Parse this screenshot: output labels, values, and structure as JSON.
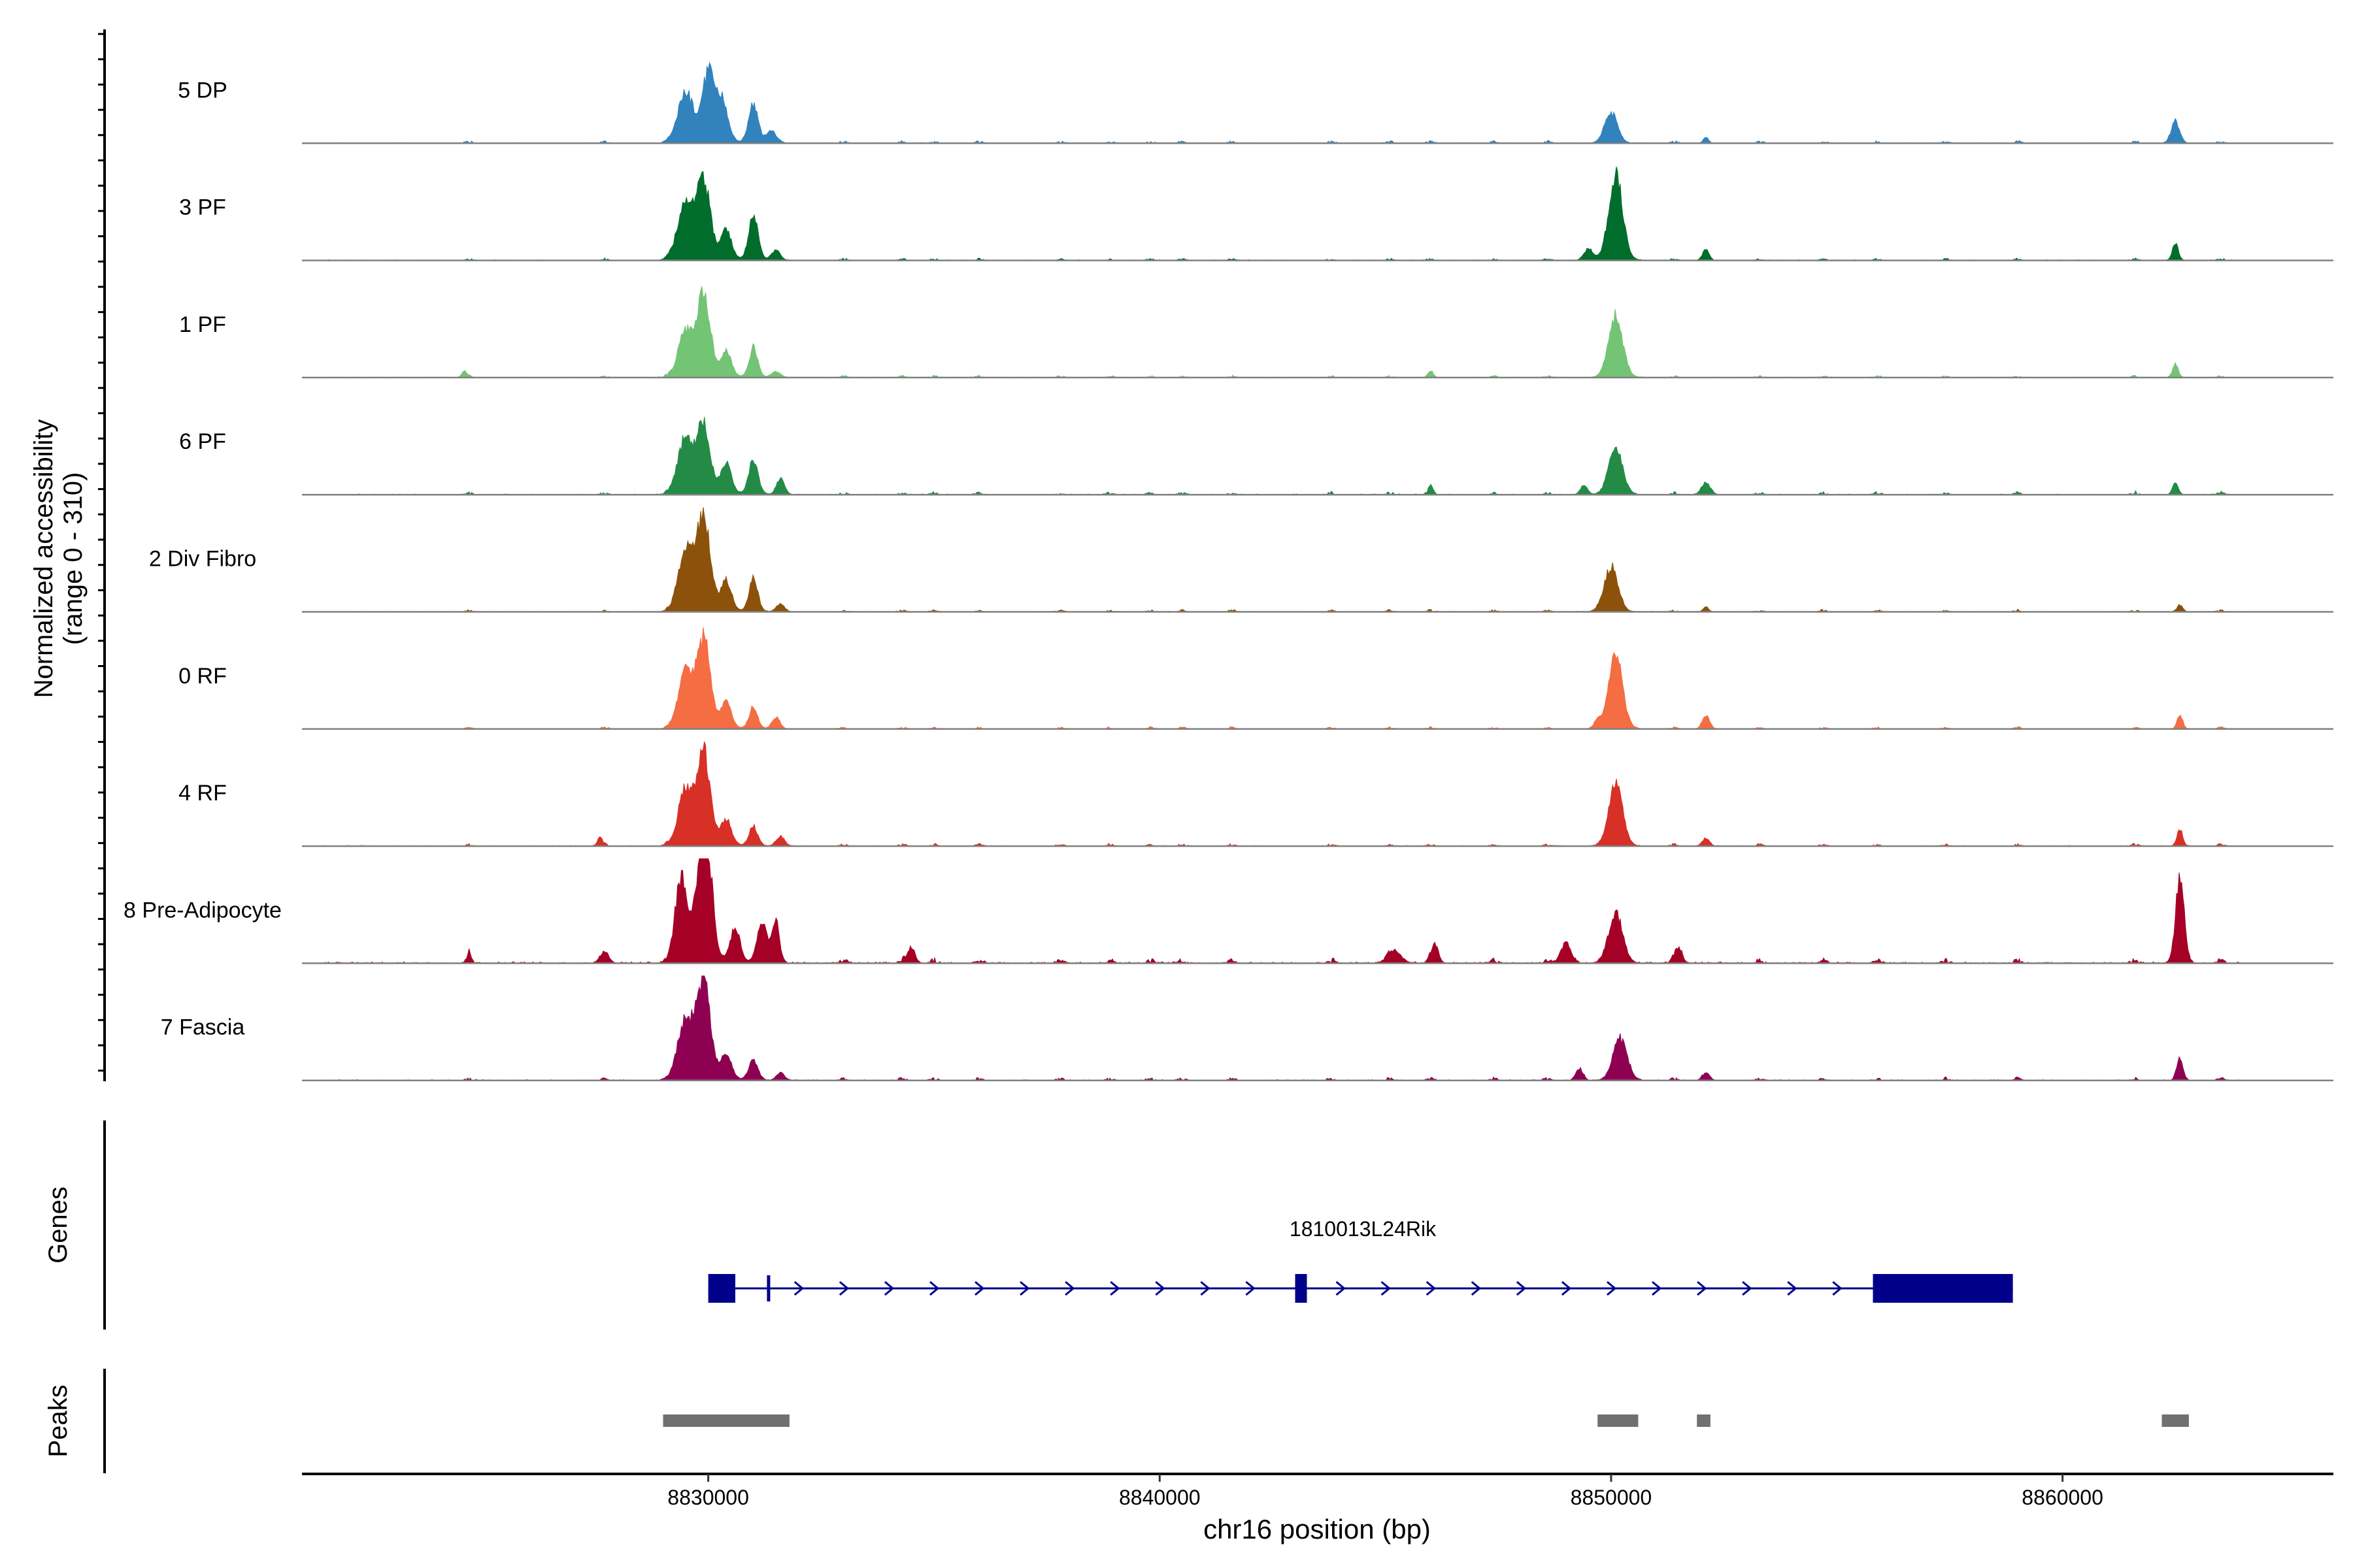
{
  "chart_data": {
    "type": "area",
    "title": "",
    "ylabel_line1": "Normalized accessibility",
    "ylabel_line2": "(range 0 - 310)",
    "xlabel": "chr16 position (bp)",
    "ylim": [
      0,
      310
    ],
    "xlim": [
      8821000,
      8866000
    ],
    "x_ticks": [
      8830000,
      8840000,
      8850000,
      8860000
    ],
    "x_tick_labels": [
      "8830000",
      "8840000",
      "8850000",
      "8860000"
    ],
    "track_baseline_color": "#808080",
    "noise_sites": [
      8824700,
      8827700,
      8829100,
      8833000,
      8834300,
      8835000,
      8836000,
      8837800,
      8838900,
      8839800,
      8840500,
      8841600,
      8843800,
      8845100,
      8846000,
      8847400,
      8848600,
      8851400,
      8853300,
      8854700,
      8855900,
      8857400,
      8859000,
      8861600,
      8863500
    ],
    "series": [
      {
        "name": "5 DP",
        "color": "#3182bd",
        "noise": 0.03,
        "peaks": [
          [
            8829500,
            170,
            0.5,
            170
          ],
          [
            8830000,
            130,
            0.7,
            300
          ],
          [
            8830300,
            130,
            0.4,
            200
          ],
          [
            8831000,
            100,
            0.4,
            160
          ],
          [
            8831400,
            120,
            0.12,
            70
          ],
          [
            8850000,
            140,
            0.3,
            180
          ],
          [
            8852100,
            60,
            0.06,
            50
          ],
          [
            8862500,
            90,
            0.22,
            140
          ]
        ]
      },
      {
        "name": "3 PF",
        "color": "#006d2c",
        "noise": 0.025,
        "peaks": [
          [
            8829500,
            180,
            0.55,
            170
          ],
          [
            8829900,
            140,
            0.8,
            300
          ],
          [
            8830400,
            110,
            0.3,
            200
          ],
          [
            8831000,
            100,
            0.45,
            160
          ],
          [
            8831500,
            100,
            0.1,
            70
          ],
          [
            8849500,
            100,
            0.12,
            60
          ],
          [
            8850100,
            150,
            0.85,
            220
          ],
          [
            8852100,
            70,
            0.12,
            60
          ],
          [
            8862500,
            60,
            0.18,
            90
          ]
        ]
      },
      {
        "name": "1 PF",
        "color": "#74c476",
        "noise": 0.025,
        "peaks": [
          [
            8829500,
            160,
            0.45,
            170
          ],
          [
            8829900,
            140,
            0.82,
            300
          ],
          [
            8830400,
            110,
            0.25,
            200
          ],
          [
            8831000,
            90,
            0.3,
            160
          ],
          [
            8831500,
            100,
            0.06,
            70
          ],
          [
            8824600,
            60,
            0.06,
            40
          ],
          [
            8846000,
            60,
            0.05,
            40
          ],
          [
            8850100,
            150,
            0.62,
            220
          ],
          [
            8862500,
            60,
            0.14,
            90
          ]
        ]
      },
      {
        "name": "6 PF",
        "color": "#238b45",
        "noise": 0.035,
        "peaks": [
          [
            8829500,
            170,
            0.55,
            170
          ],
          [
            8829900,
            140,
            0.68,
            300
          ],
          [
            8830400,
            110,
            0.3,
            200
          ],
          [
            8831000,
            100,
            0.35,
            160
          ],
          [
            8831600,
            90,
            0.16,
            70
          ],
          [
            8846000,
            60,
            0.06,
            40
          ],
          [
            8849400,
            80,
            0.1,
            60
          ],
          [
            8850100,
            150,
            0.45,
            220
          ],
          [
            8852100,
            100,
            0.12,
            70
          ],
          [
            8862500,
            60,
            0.12,
            90
          ]
        ]
      },
      {
        "name": "2 Div Fibro",
        "color": "#8c510a",
        "noise": 0.025,
        "peaks": [
          [
            8829500,
            160,
            0.62,
            170
          ],
          [
            8829900,
            140,
            0.97,
            300
          ],
          [
            8830400,
            110,
            0.3,
            200
          ],
          [
            8831000,
            90,
            0.35,
            160
          ],
          [
            8831600,
            90,
            0.08,
            70
          ],
          [
            8850000,
            150,
            0.45,
            200
          ],
          [
            8852100,
            60,
            0.05,
            40
          ],
          [
            8862600,
            60,
            0.07,
            60
          ]
        ]
      },
      {
        "name": "0 RF",
        "color": "#f46d43",
        "noise": 0.025,
        "peaks": [
          [
            8829500,
            160,
            0.55,
            170
          ],
          [
            8829900,
            140,
            0.9,
            300
          ],
          [
            8830400,
            110,
            0.25,
            200
          ],
          [
            8831000,
            90,
            0.22,
            160
          ],
          [
            8831500,
            90,
            0.12,
            70
          ],
          [
            8849700,
            80,
            0.08,
            60
          ],
          [
            8850100,
            150,
            0.72,
            220
          ],
          [
            8852100,
            80,
            0.14,
            70
          ],
          [
            8862600,
            60,
            0.14,
            80
          ]
        ]
      },
      {
        "name": "4 RF",
        "color": "#d73027",
        "noise": 0.03,
        "peaks": [
          [
            8827600,
            60,
            0.08,
            50
          ],
          [
            8829500,
            160,
            0.55,
            170
          ],
          [
            8829900,
            140,
            0.95,
            300
          ],
          [
            8830400,
            110,
            0.25,
            200
          ],
          [
            8831000,
            90,
            0.2,
            160
          ],
          [
            8831600,
            90,
            0.1,
            70
          ],
          [
            8850100,
            150,
            0.6,
            220
          ],
          [
            8852100,
            80,
            0.08,
            60
          ],
          [
            8862600,
            60,
            0.17,
            80
          ]
        ]
      },
      {
        "name": "8 Pre-Adipocyte",
        "color": "#a50026",
        "noise": 0.06,
        "peaks": [
          [
            8829400,
            130,
            0.85,
            170
          ],
          [
            8829800,
            120,
            0.8,
            150
          ],
          [
            8830000,
            110,
            0.95,
            300
          ],
          [
            8830600,
            100,
            0.35,
            200
          ],
          [
            8831200,
            110,
            0.42,
            160
          ],
          [
            8831500,
            80,
            0.4,
            70
          ],
          [
            8824700,
            50,
            0.08,
            40
          ],
          [
            8827700,
            100,
            0.1,
            60
          ],
          [
            8834500,
            80,
            0.15,
            60
          ],
          [
            8845200,
            150,
            0.12,
            80
          ],
          [
            8846100,
            80,
            0.18,
            60
          ],
          [
            8849000,
            120,
            0.2,
            80
          ],
          [
            8850100,
            150,
            0.5,
            220
          ],
          [
            8851500,
            80,
            0.15,
            60
          ],
          [
            8862600,
            90,
            0.85,
            140
          ]
        ]
      },
      {
        "name": "7 Fascia",
        "color": "#8e0152",
        "noise": 0.035,
        "peaks": [
          [
            8829500,
            170,
            0.6,
            170
          ],
          [
            8829900,
            140,
            1.0,
            300
          ],
          [
            8830400,
            110,
            0.25,
            200
          ],
          [
            8831000,
            100,
            0.2,
            160
          ],
          [
            8831600,
            90,
            0.08,
            70
          ],
          [
            8849300,
            80,
            0.12,
            60
          ],
          [
            8850200,
            150,
            0.42,
            220
          ],
          [
            8852100,
            80,
            0.08,
            60
          ],
          [
            8862600,
            70,
            0.22,
            80
          ]
        ]
      }
    ]
  },
  "genes": {
    "ylabel": "Genes",
    "name": "1810013L24Rik",
    "color": "#00008b",
    "start": 8830000,
    "end": 8858900,
    "exons": [
      [
        8830000,
        8830600
      ],
      [
        8831300,
        8831350
      ],
      [
        8843000,
        8843300
      ],
      [
        8855800,
        8858900
      ]
    ],
    "arrow_positions": [
      8832000,
      8833000,
      8834000,
      8835000,
      8836000,
      8837000,
      8838000,
      8839000,
      8840000,
      8841000,
      8842000,
      8844000,
      8845000,
      8846000,
      8847000,
      8848000,
      8849000,
      8850000,
      8851000,
      8852000,
      8853000,
      8854000,
      8855000
    ]
  },
  "peaks": {
    "ylabel": "Peaks",
    "color": "#707070",
    "regions": [
      [
        8829000,
        8831800
      ],
      [
        8849700,
        8850600
      ],
      [
        8851900,
        8852200
      ],
      [
        8862200,
        8862800
      ]
    ]
  }
}
